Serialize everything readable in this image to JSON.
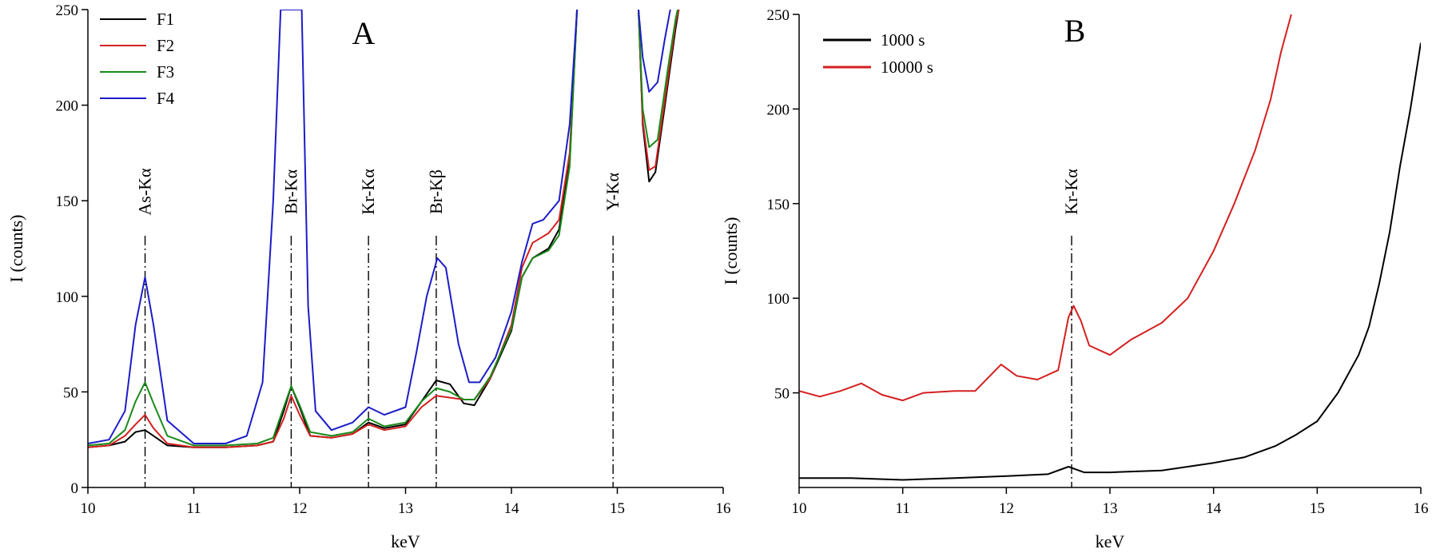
{
  "chart_data": [
    {
      "type": "line",
      "panel_label": "A",
      "xlabel": "keV",
      "ylabel": "I (counts)",
      "xlim": [
        10,
        16
      ],
      "ylim": [
        0,
        250
      ],
      "x_ticks": [
        10,
        11,
        12,
        13,
        14,
        15,
        16
      ],
      "y_ticks": [
        0,
        50,
        100,
        150,
        200,
        250
      ],
      "legend_position": "top-left",
      "grid": false,
      "emission_lines": [
        {
          "label": "As-Kα",
          "x": 10.54
        },
        {
          "label": "Br-Kα",
          "x": 11.92
        },
        {
          "label": "Kr-Kα",
          "x": 12.65
        },
        {
          "label": "Br-Kβ",
          "x": 13.29
        },
        {
          "label": "Y-Kα",
          "x": 14.96
        }
      ],
      "series": [
        {
          "name": "F1",
          "color": "#000000",
          "points": [
            [
              10.0,
              21
            ],
            [
              10.2,
              22
            ],
            [
              10.35,
              24
            ],
            [
              10.45,
              29
            ],
            [
              10.54,
              30
            ],
            [
              10.62,
              27
            ],
            [
              10.75,
              22
            ],
            [
              11.0,
              21
            ],
            [
              11.3,
              21
            ],
            [
              11.6,
              22
            ],
            [
              11.75,
              24
            ],
            [
              11.85,
              40
            ],
            [
              11.92,
              53
            ],
            [
              12.0,
              42
            ],
            [
              12.1,
              27
            ],
            [
              12.3,
              26
            ],
            [
              12.5,
              28
            ],
            [
              12.65,
              34
            ],
            [
              12.8,
              31
            ],
            [
              13.0,
              33
            ],
            [
              13.15,
              45
            ],
            [
              13.29,
              56
            ],
            [
              13.42,
              54
            ],
            [
              13.55,
              44
            ],
            [
              13.65,
              43
            ],
            [
              13.8,
              57
            ],
            [
              14.0,
              82
            ],
            [
              14.1,
              110
            ],
            [
              14.2,
              120
            ],
            [
              14.35,
              125
            ],
            [
              14.45,
              135
            ],
            [
              14.55,
              170
            ],
            [
              14.62,
              250
            ]
          ]
        },
        {
          "name": "F2",
          "color": "#d42020",
          "points": [
            [
              10.0,
              21
            ],
            [
              10.2,
              22
            ],
            [
              10.35,
              27
            ],
            [
              10.45,
              33
            ],
            [
              10.54,
              38
            ],
            [
              10.62,
              31
            ],
            [
              10.75,
              23
            ],
            [
              11.0,
              21
            ],
            [
              11.3,
              21
            ],
            [
              11.6,
              22
            ],
            [
              11.75,
              24
            ],
            [
              11.85,
              36
            ],
            [
              11.92,
              48
            ],
            [
              12.0,
              38
            ],
            [
              12.1,
              27
            ],
            [
              12.3,
              26
            ],
            [
              12.5,
              28
            ],
            [
              12.65,
              33
            ],
            [
              12.8,
              30
            ],
            [
              13.0,
              32
            ],
            [
              13.15,
              42
            ],
            [
              13.29,
              48
            ],
            [
              13.42,
              47
            ],
            [
              13.55,
              46
            ],
            [
              13.65,
              46
            ],
            [
              13.8,
              57
            ],
            [
              14.0,
              85
            ],
            [
              14.1,
              115
            ],
            [
              14.2,
              128
            ],
            [
              14.35,
              133
            ],
            [
              14.45,
              140
            ],
            [
              14.55,
              175
            ],
            [
              14.62,
              250
            ]
          ]
        },
        {
          "name": "F3",
          "color": "#1a8a1a",
          "points": [
            [
              10.0,
              22
            ],
            [
              10.2,
              23
            ],
            [
              10.35,
              30
            ],
            [
              10.45,
              45
            ],
            [
              10.54,
              55
            ],
            [
              10.62,
              44
            ],
            [
              10.75,
              27
            ],
            [
              11.0,
              22
            ],
            [
              11.3,
              22
            ],
            [
              11.6,
              23
            ],
            [
              11.75,
              26
            ],
            [
              11.85,
              42
            ],
            [
              11.92,
              53
            ],
            [
              12.0,
              43
            ],
            [
              12.1,
              29
            ],
            [
              12.3,
              27
            ],
            [
              12.5,
              29
            ],
            [
              12.65,
              36
            ],
            [
              12.8,
              32
            ],
            [
              13.0,
              34
            ],
            [
              13.15,
              45
            ],
            [
              13.29,
              52
            ],
            [
              13.42,
              50
            ],
            [
              13.55,
              46
            ],
            [
              13.65,
              46
            ],
            [
              13.8,
              58
            ],
            [
              14.0,
              83
            ],
            [
              14.1,
              110
            ],
            [
              14.2,
              120
            ],
            [
              14.35,
              124
            ],
            [
              14.45,
              132
            ],
            [
              14.55,
              168
            ],
            [
              14.62,
              250
            ]
          ]
        },
        {
          "name": "F4",
          "color": "#1c1cc8",
          "points": [
            [
              10.0,
              23
            ],
            [
              10.2,
              25
            ],
            [
              10.35,
              40
            ],
            [
              10.45,
              85
            ],
            [
              10.54,
              110
            ],
            [
              10.62,
              85
            ],
            [
              10.75,
              35
            ],
            [
              11.0,
              23
            ],
            [
              11.3,
              23
            ],
            [
              11.5,
              27
            ],
            [
              11.65,
              55
            ],
            [
              11.75,
              150
            ],
            [
              11.82,
              250
            ],
            [
              12.02,
              250
            ],
            [
              12.08,
              95
            ],
            [
              12.15,
              40
            ],
            [
              12.3,
              30
            ],
            [
              12.5,
              34
            ],
            [
              12.65,
              42
            ],
            [
              12.8,
              38
            ],
            [
              13.0,
              42
            ],
            [
              13.1,
              70
            ],
            [
              13.2,
              100
            ],
            [
              13.3,
              120
            ],
            [
              13.38,
              115
            ],
            [
              13.5,
              75
            ],
            [
              13.6,
              55
            ],
            [
              13.7,
              55
            ],
            [
              13.85,
              68
            ],
            [
              14.0,
              92
            ],
            [
              14.1,
              118
            ],
            [
              14.2,
              138
            ],
            [
              14.3,
              140
            ],
            [
              14.45,
              150
            ],
            [
              14.55,
              190
            ],
            [
              14.62,
              250
            ]
          ]
        }
      ],
      "high_energy_segments": [
        {
          "name": "F1",
          "points": [
            [
              15.2,
              250
            ],
            [
              15.24,
              190
            ],
            [
              15.3,
              160
            ],
            [
              15.36,
              165
            ],
            [
              15.45,
              200
            ],
            [
              15.55,
              240
            ],
            [
              15.58,
              250
            ]
          ]
        },
        {
          "name": "F2",
          "points": [
            [
              15.2,
              250
            ],
            [
              15.24,
              192
            ],
            [
              15.3,
              166
            ],
            [
              15.36,
              168
            ],
            [
              15.45,
              203
            ],
            [
              15.55,
              243
            ],
            [
              15.58,
              250
            ]
          ]
        },
        {
          "name": "F3",
          "points": [
            [
              15.2,
              250
            ],
            [
              15.24,
              198
            ],
            [
              15.3,
              178
            ],
            [
              15.38,
              182
            ],
            [
              15.48,
              220
            ],
            [
              15.55,
              245
            ],
            [
              15.57,
              250
            ]
          ]
        },
        {
          "name": "F4",
          "points": [
            [
              15.2,
              250
            ],
            [
              15.24,
              225
            ],
            [
              15.3,
              207
            ],
            [
              15.38,
              212
            ],
            [
              15.45,
              235
            ],
            [
              15.5,
              250
            ]
          ]
        }
      ]
    },
    {
      "type": "line",
      "panel_label": "B",
      "xlabel": "keV",
      "ylabel": "I (counts)",
      "xlim": [
        10,
        16
      ],
      "ylim": [
        0,
        250
      ],
      "x_ticks": [
        10,
        11,
        12,
        13,
        14,
        15,
        16
      ],
      "y_ticks": [
        50,
        100,
        150,
        200,
        250
      ],
      "legend_position": "top-left",
      "grid": false,
      "emission_lines": [
        {
          "label": "Kr-Kα",
          "x": 12.63
        }
      ],
      "series": [
        {
          "name": "1000 s",
          "color": "#000000",
          "points": [
            [
              10.0,
              5
            ],
            [
              10.5,
              5
            ],
            [
              11.0,
              4
            ],
            [
              11.5,
              5
            ],
            [
              12.0,
              6
            ],
            [
              12.4,
              7
            ],
            [
              12.6,
              11
            ],
            [
              12.75,
              8
            ],
            [
              13.0,
              8
            ],
            [
              13.5,
              9
            ],
            [
              14.0,
              13
            ],
            [
              14.3,
              16
            ],
            [
              14.6,
              22
            ],
            [
              14.8,
              28
            ],
            [
              15.0,
              35
            ],
            [
              15.2,
              50
            ],
            [
              15.4,
              70
            ],
            [
              15.5,
              85
            ],
            [
              15.6,
              108
            ],
            [
              15.7,
              135
            ],
            [
              15.8,
              170
            ],
            [
              15.9,
              200
            ],
            [
              16.0,
              235
            ]
          ]
        },
        {
          "name": "10000 s",
          "color": "#d42020",
          "points": [
            [
              10.0,
              51
            ],
            [
              10.2,
              48
            ],
            [
              10.4,
              51
            ],
            [
              10.6,
              55
            ],
            [
              10.8,
              49
            ],
            [
              11.0,
              46
            ],
            [
              11.2,
              50
            ],
            [
              11.5,
              51
            ],
            [
              11.7,
              51
            ],
            [
              11.95,
              65
            ],
            [
              12.1,
              59
            ],
            [
              12.3,
              57
            ],
            [
              12.5,
              62
            ],
            [
              12.6,
              90
            ],
            [
              12.65,
              96
            ],
            [
              12.72,
              88
            ],
            [
              12.8,
              75
            ],
            [
              13.0,
              70
            ],
            [
              13.2,
              78
            ],
            [
              13.5,
              87
            ],
            [
              13.75,
              100
            ],
            [
              14.0,
              125
            ],
            [
              14.2,
              150
            ],
            [
              14.4,
              178
            ],
            [
              14.55,
              205
            ],
            [
              14.65,
              230
            ],
            [
              14.75,
              250
            ]
          ]
        }
      ]
    }
  ]
}
